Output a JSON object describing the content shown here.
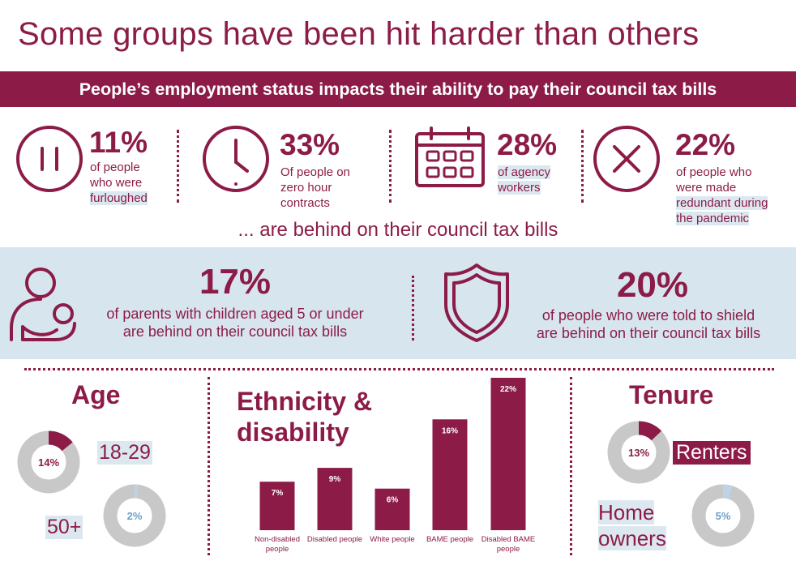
{
  "title": "Some groups have been hit harder than others",
  "banner": "People’s employment status impacts their ability to pay their council tax bills",
  "employment": [
    {
      "icon": "pause-icon",
      "pct": "11%",
      "lines": [
        "of people",
        "who were",
        "furloughed"
      ]
    },
    {
      "icon": "clock-icon",
      "pct": "33%",
      "lines": [
        "Of people on",
        "zero hour",
        "contracts"
      ]
    },
    {
      "icon": "calendar-icon",
      "pct": "28%",
      "lines": [
        "of agency",
        "workers"
      ]
    },
    {
      "icon": "cross-icon",
      "pct": "22%",
      "lines": [
        "of people who",
        "were made",
        "redundant during",
        "the pandemic"
      ]
    }
  ],
  "behind_text": "... are behind on their council tax bills",
  "band": [
    {
      "icon": "parent-child-icon",
      "pct": "17%",
      "line1": "of parents with children aged 5 or under",
      "line2": "are behind on their council tax bills"
    },
    {
      "icon": "shield-icon",
      "pct": "20%",
      "line1": "of people who were told to shield",
      "line2": "are behind on their council tax bills"
    }
  ],
  "age": {
    "title": "Age",
    "groups": [
      {
        "label": "18-29",
        "value": 14,
        "display": "14%"
      },
      {
        "label": "50+",
        "value": 2,
        "display": "2%"
      }
    ]
  },
  "ethnicity": {
    "title_line1": "Ethnicity &",
    "title_line2": "disability"
  },
  "tenure": {
    "title": "Tenure",
    "groups": [
      {
        "label": "Renters",
        "value": 13,
        "display": "13%"
      },
      {
        "label_line1": "Home",
        "label_line2": "owners",
        "value": 5,
        "display": "5%"
      }
    ]
  },
  "colors": {
    "primary": "#8c1c47",
    "band": "#d7e5ef",
    "highlight": "#dce8f0",
    "grey": "#c8c8c8",
    "light_blue": "#bed3e6"
  },
  "chart_data": {
    "type": "bar",
    "title": "Ethnicity & disability",
    "categories": [
      "Non-disabled people",
      "Disabled people",
      "White people",
      "BAME people",
      "Disabled BAME people"
    ],
    "values": [
      7,
      9,
      6,
      16,
      22
    ],
    "value_labels": [
      "7%",
      "9%",
      "6%",
      "16%",
      "22%"
    ],
    "ylim": [
      0,
      22
    ],
    "xlabel": "",
    "ylabel": ""
  }
}
